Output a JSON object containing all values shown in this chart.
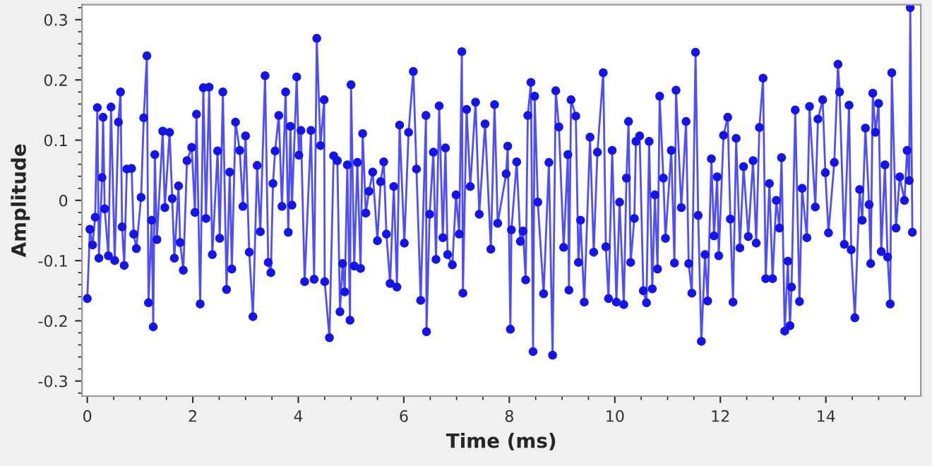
{
  "chart_data": {
    "type": "line",
    "xlabel": "Time (ms)",
    "ylabel": "Amplitude",
    "x": [
      0,
      0.05,
      0.1,
      0.15,
      0.19,
      0.22,
      0.28,
      0.3,
      0.33,
      0.4,
      0.45,
      0.52,
      0.59,
      0.63,
      0.66,
      0.7,
      0.75,
      0.84,
      0.88,
      0.93,
      1.02,
      1.07,
      1.13,
      1.16,
      1.22,
      1.25,
      1.28,
      1.32,
      1.43,
      1.47,
      1.56,
      1.61,
      1.65,
      1.73,
      1.76,
      1.82,
      1.89,
      1.98,
      2.04,
      2.07,
      2.14,
      2.2,
      2.25,
      2.31,
      2.37,
      2.47,
      2.51,
      2.57,
      2.64,
      2.7,
      2.74,
      2.81,
      2.89,
      2.95,
      3.0,
      3.07,
      3.14,
      3.22,
      3.28,
      3.37,
      3.43,
      3.48,
      3.52,
      3.56,
      3.63,
      3.69,
      3.76,
      3.81,
      3.85,
      3.88,
      3.97,
      4.01,
      4.05,
      4.12,
      4.24,
      4.3,
      4.35,
      4.42,
      4.49,
      4.5,
      4.59,
      4.67,
      4.74,
      4.79,
      4.84,
      4.88,
      4.93,
      4.98,
      5.0,
      5.06,
      5.12,
      5.18,
      5.22,
      5.28,
      5.34,
      5.41,
      5.5,
      5.56,
      5.62,
      5.67,
      5.74,
      5.81,
      5.87,
      5.92,
      6.01,
      6.09,
      6.18,
      6.24,
      6.32,
      6.42,
      6.43,
      6.49,
      6.56,
      6.61,
      6.67,
      6.74,
      6.79,
      6.83,
      6.92,
      6.99,
      7.05,
      7.1,
      7.12,
      7.19,
      7.26,
      7.36,
      7.43,
      7.54,
      7.65,
      7.72,
      7.78,
      7.94,
      7.97,
      8.02,
      8.04,
      8.14,
      8.21,
      8.26,
      8.31,
      8.35,
      8.41,
      8.45,
      8.48,
      8.54,
      8.65,
      8.75,
      8.82,
      8.88,
      8.94,
      9.03,
      9.11,
      9.13,
      9.17,
      9.26,
      9.31,
      9.35,
      9.42,
      9.53,
      9.6,
      9.67,
      9.78,
      9.83,
      9.88,
      9.95,
      10.03,
      10.09,
      10.17,
      10.22,
      10.26,
      10.3,
      10.37,
      10.4,
      10.47,
      10.54,
      10.6,
      10.65,
      10.71,
      10.76,
      10.81,
      10.85,
      10.92,
      10.96,
      11.07,
      11.13,
      11.16,
      11.26,
      11.35,
      11.4,
      11.46,
      11.53,
      11.58,
      11.64,
      11.71,
      11.76,
      11.83,
      11.88,
      11.94,
      11.97,
      12.06,
      12.14,
      12.19,
      12.24,
      12.3,
      12.37,
      12.44,
      12.53,
      12.62,
      12.68,
      12.74,
      12.81,
      12.86,
      12.93,
      12.99,
      13.06,
      13.12,
      13.16,
      13.22,
      13.28,
      13.32,
      13.35,
      13.42,
      13.5,
      13.55,
      13.64,
      13.69,
      13.8,
      13.85,
      13.94,
      13.99,
      14.05,
      14.16,
      14.23,
      14.26,
      14.35,
      14.44,
      14.48,
      14.55,
      14.64,
      14.69,
      14.75,
      14.82,
      14.85,
      14.89,
      14.94,
      15.0,
      15.05,
      15.12,
      15.17,
      15.22,
      15.25,
      15.33,
      15.4,
      15.49,
      15.54,
      15.58,
      15.6,
      15.64
    ],
    "series": [
      {
        "color": "#1414f0",
        "values": [
          -0.163,
          -0.048,
          -0.074,
          -0.028,
          0.154,
          -0.096,
          0.038,
          0.138,
          -0.014,
          -0.092,
          0.155,
          -0.1,
          0.13,
          0.18,
          -0.044,
          -0.108,
          0.052,
          0.053,
          -0.056,
          -0.08,
          0.005,
          0.137,
          0.24,
          -0.17,
          -0.033,
          -0.21,
          0.076,
          -0.065,
          0.115,
          -0.012,
          0.113,
          0.003,
          -0.096,
          0.024,
          -0.07,
          -0.116,
          0.066,
          0.088,
          -0.02,
          0.143,
          -0.172,
          0.187,
          -0.03,
          0.188,
          -0.09,
          0.082,
          -0.063,
          0.18,
          -0.148,
          0.047,
          -0.114,
          0.13,
          0.083,
          -0.01,
          0.107,
          -0.086,
          -0.193,
          0.058,
          -0.052,
          0.207,
          -0.103,
          -0.12,
          0.028,
          0.082,
          0.141,
          -0.01,
          0.18,
          -0.053,
          0.123,
          -0.008,
          0.205,
          0.075,
          0.116,
          -0.135,
          0.116,
          -0.131,
          0.269,
          0.091,
          0.167,
          -0.135,
          -0.228,
          0.074,
          0.066,
          -0.185,
          -0.105,
          -0.152,
          0.059,
          -0.199,
          0.192,
          -0.109,
          0.063,
          -0.113,
          0.111,
          -0.021,
          0.015,
          0.047,
          -0.067,
          0.031,
          0.064,
          -0.056,
          -0.138,
          0.023,
          -0.144,
          0.125,
          -0.071,
          0.113,
          0.214,
          0.052,
          -0.166,
          0.141,
          -0.218,
          -0.023,
          0.08,
          -0.098,
          0.157,
          -0.062,
          0.087,
          -0.09,
          -0.107,
          0.009,
          -0.056,
          0.247,
          -0.154,
          0.151,
          0.023,
          0.163,
          -0.023,
          0.127,
          -0.081,
          0.159,
          -0.038,
          0.044,
          0.09,
          -0.214,
          -0.049,
          0.064,
          -0.068,
          -0.051,
          -0.132,
          0.141,
          0.196,
          -0.251,
          0.173,
          -0.003,
          -0.155,
          0.063,
          -0.257,
          0.182,
          0.122,
          -0.078,
          0.076,
          -0.149,
          0.167,
          0.14,
          -0.103,
          -0.033,
          -0.169,
          0.105,
          -0.086,
          0.08,
          0.212,
          -0.077,
          -0.163,
          0.083,
          -0.169,
          -0.003,
          -0.173,
          0.037,
          0.131,
          -0.103,
          -0.03,
          0.098,
          0.107,
          -0.15,
          -0.17,
          0.098,
          -0.147,
          0.009,
          -0.114,
          0.173,
          0.037,
          -0.063,
          0.083,
          -0.104,
          0.183,
          -0.012,
          0.131,
          -0.105,
          -0.154,
          0.246,
          -0.025,
          -0.234,
          -0.09,
          -0.167,
          0.069,
          -0.059,
          0.039,
          -0.092,
          0.108,
          0.138,
          -0.031,
          -0.169,
          0.103,
          -0.079,
          0.056,
          -0.06,
          0.066,
          -0.071,
          0.121,
          0.203,
          -0.13,
          0.028,
          -0.13,
          0,
          -0.046,
          0.071,
          -0.217,
          -0.101,
          -0.208,
          -0.144,
          0.15,
          -0.168,
          0.02,
          -0.062,
          0.156,
          -0.011,
          0.135,
          0.167,
          0.046,
          -0.054,
          0.063,
          0.226,
          0.18,
          -0.073,
          0.158,
          -0.082,
          -0.195,
          0.018,
          -0.033,
          0.12,
          -0.007,
          -0.105,
          0.178,
          0.113,
          0.161,
          -0.085,
          0.059,
          -0.094,
          -0.172,
          0.212,
          -0.046,
          0.039,
          0,
          0.083,
          0.033,
          0.32,
          -0.053
        ]
      }
    ],
    "xlim": [
      -0.1,
      15.8
    ],
    "ylim": [
      -0.325,
      0.325
    ],
    "xticks": [
      0,
      2,
      4,
      6,
      8,
      10,
      12,
      14
    ],
    "yticks": [
      -0.3,
      -0.2,
      -0.1,
      0,
      0.1,
      0.2,
      0.3
    ],
    "marker": "circle",
    "line_style": "solid",
    "grid": false,
    "legend": false
  }
}
